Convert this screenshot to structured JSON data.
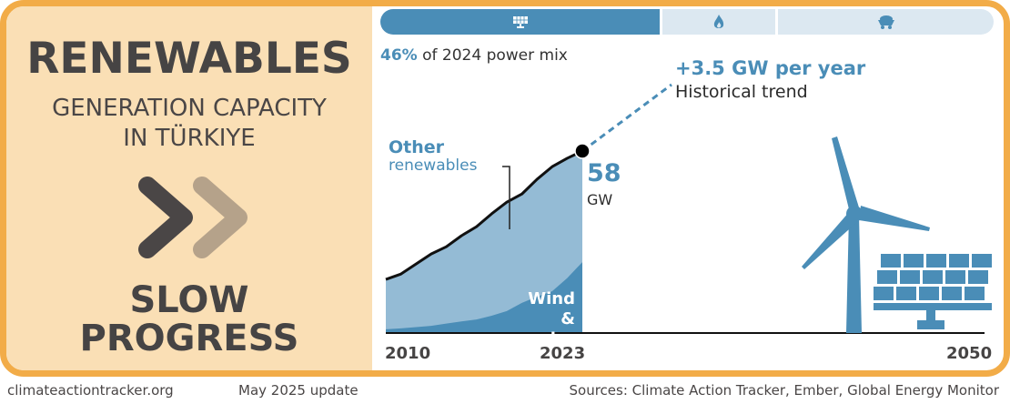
{
  "header": {
    "title": "RENEWABLES",
    "subtitle_line1": "GENERATION CAPACITY",
    "subtitle_line2": "IN TÜRKIYE",
    "status_icon": "double-chevron-right-icon",
    "status_line1": "SLOW",
    "status_line2": "PROGRESS"
  },
  "power_mix": {
    "segments": [
      {
        "name": "renewables",
        "icon": "solar-panel-icon",
        "share_percent": 46,
        "color": "#4A8DB7",
        "active": true
      },
      {
        "name": "gas",
        "icon": "flame-icon",
        "share_percent": 18,
        "color": "#DCE8F1",
        "active": false
      },
      {
        "name": "coal",
        "icon": "coal-cart-icon",
        "share_percent": 36,
        "color": "#DCE8F1",
        "active": false
      }
    ],
    "label_value": "46%",
    "label_text": " of 2024 power mix"
  },
  "trend": {
    "value": "+3.5 GW per year",
    "label": "Historical trend"
  },
  "chart_data": {
    "type": "area",
    "title": "Renewables generation capacity in Türkiye",
    "xlabel": "",
    "ylabel": "GW",
    "x": [
      2010,
      2011,
      2012,
      2013,
      2014,
      2015,
      2016,
      2017,
      2018,
      2019,
      2020,
      2021,
      2022,
      2023
    ],
    "xlim": [
      2010,
      2050
    ],
    "ylim": [
      0,
      58
    ],
    "x_ticks": [
      "2010",
      "2023",
      "2050"
    ],
    "series": [
      {
        "name": "Wind & solar",
        "label_line1": "Wind",
        "label_line2": "& solar",
        "color": "#4A8DB7",
        "values": [
          1.2,
          1.5,
          1.9,
          2.3,
          3.0,
          3.7,
          4.3,
          5.5,
          7.0,
          9.6,
          11.6,
          13.3,
          17.5,
          22.6
        ]
      },
      {
        "name": "Other renewables",
        "label_line1": "Other",
        "label_line2": "renewables",
        "color": "#94BBD5",
        "values": [
          15.9,
          17.3,
          20.1,
          22.9,
          24.5,
          27.3,
          29.6,
          32.5,
          34.7,
          34.7,
          37.4,
          39.7,
          38.2,
          35.4
        ]
      }
    ],
    "total_line": [
      17.1,
      18.8,
      22.0,
      25.2,
      27.5,
      31.0,
      33.9,
      38.0,
      41.7,
      44.3,
      49.0,
      53.0,
      55.7,
      58
    ],
    "end_value": "58",
    "end_unit": "GW",
    "trend_projection": {
      "from_year": 2023,
      "rate_gw_per_year": 3.5,
      "style": "dashed"
    },
    "grid": false,
    "legend": "inline labels"
  },
  "illustrations": [
    "wind-turbine-icon",
    "solar-panel-icon"
  ],
  "footer": {
    "website": "climateactiontracker.org",
    "update": "May 2025 update",
    "sources": "Sources: Climate Action Tracker, Ember, Global Energy Monitor"
  },
  "colors": {
    "border": "#F2AC48",
    "left_panel": "#FADFB5",
    "accent_blue": "#4A8DB7",
    "light_blue": "#94BBD5",
    "chevron_dark": "#4A4646",
    "chevron_light": "#B5A28A"
  }
}
